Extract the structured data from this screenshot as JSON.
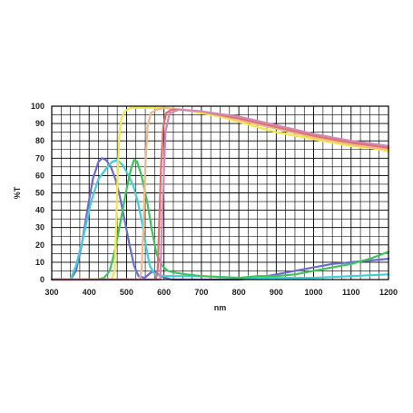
{
  "chart_data": {
    "type": "line",
    "title": "",
    "xlabel": "nm",
    "ylabel": "%T",
    "xlim": [
      300,
      1200
    ],
    "ylim": [
      0,
      100
    ],
    "x_ticks": [
      300,
      400,
      500,
      600,
      700,
      800,
      900,
      1000,
      1100,
      1200
    ],
    "y_ticks": [
      0,
      10,
      20,
      30,
      40,
      50,
      60,
      70,
      80,
      90,
      100
    ],
    "grid": true,
    "legend": "none",
    "colors": {
      "grid": "#000000",
      "blue": "#6b6bd0",
      "cyan": "#40cfd8",
      "green": "#3dc45a",
      "yellow": "#f2e84a",
      "peach": "#f0b888",
      "red": "#e07070",
      "pink": "#d08ab8"
    },
    "series": [
      {
        "color": "#6b6bd0",
        "points": [
          [
            300,
            0
          ],
          [
            350,
            0
          ],
          [
            365,
            5
          ],
          [
            380,
            20
          ],
          [
            395,
            40
          ],
          [
            410,
            58
          ],
          [
            425,
            68
          ],
          [
            435,
            70
          ],
          [
            445,
            69
          ],
          [
            458,
            65
          ],
          [
            470,
            58
          ],
          [
            482,
            48
          ],
          [
            495,
            34
          ],
          [
            508,
            20
          ],
          [
            520,
            8
          ],
          [
            532,
            2
          ],
          [
            548,
            1
          ],
          [
            565,
            4
          ],
          [
            575,
            5
          ],
          [
            590,
            2
          ],
          [
            620,
            0
          ],
          [
            700,
            0
          ],
          [
            800,
            0
          ],
          [
            850,
            1
          ],
          [
            900,
            3
          ],
          [
            950,
            5
          ],
          [
            1000,
            7
          ],
          [
            1050,
            9
          ],
          [
            1100,
            10
          ],
          [
            1150,
            11
          ],
          [
            1200,
            12
          ]
        ]
      },
      {
        "color": "#40cfd8",
        "points": [
          [
            300,
            0
          ],
          [
            350,
            0
          ],
          [
            365,
            8
          ],
          [
            385,
            25
          ],
          [
            405,
            45
          ],
          [
            425,
            58
          ],
          [
            445,
            64
          ],
          [
            462,
            68
          ],
          [
            475,
            69
          ],
          [
            490,
            66
          ],
          [
            505,
            60
          ],
          [
            518,
            54
          ],
          [
            530,
            45
          ],
          [
            542,
            32
          ],
          [
            553,
            18
          ],
          [
            562,
            8
          ],
          [
            575,
            3
          ],
          [
            600,
            2
          ],
          [
            650,
            2
          ],
          [
            700,
            2
          ],
          [
            800,
            1
          ],
          [
            900,
            1
          ],
          [
            1000,
            1
          ],
          [
            1100,
            2
          ],
          [
            1200,
            3
          ]
        ]
      },
      {
        "color": "#3dc45a",
        "points": [
          [
            300,
            0
          ],
          [
            420,
            0
          ],
          [
            440,
            1
          ],
          [
            455,
            5
          ],
          [
            470,
            18
          ],
          [
            485,
            35
          ],
          [
            500,
            52
          ],
          [
            512,
            64
          ],
          [
            520,
            69
          ],
          [
            528,
            68
          ],
          [
            540,
            60
          ],
          [
            555,
            45
          ],
          [
            568,
            28
          ],
          [
            580,
            15
          ],
          [
            595,
            8
          ],
          [
            610,
            5
          ],
          [
            630,
            4
          ],
          [
            660,
            3
          ],
          [
            700,
            2
          ],
          [
            800,
            1
          ],
          [
            850,
            2
          ],
          [
            900,
            2
          ],
          [
            950,
            3
          ],
          [
            1000,
            5
          ],
          [
            1050,
            7
          ],
          [
            1100,
            9
          ],
          [
            1150,
            12
          ],
          [
            1200,
            16
          ]
        ]
      },
      {
        "color": "#f2e84a",
        "points": [
          [
            300,
            0
          ],
          [
            460,
            0
          ],
          [
            468,
            5
          ],
          [
            472,
            30
          ],
          [
            476,
            60
          ],
          [
            480,
            82
          ],
          [
            486,
            93
          ],
          [
            495,
            97
          ],
          [
            510,
            99
          ],
          [
            550,
            99
          ],
          [
            600,
            99
          ],
          [
            650,
            98
          ],
          [
            700,
            96
          ],
          [
            750,
            94
          ],
          [
            800,
            91
          ],
          [
            850,
            88
          ],
          [
            900,
            85
          ],
          [
            950,
            83
          ],
          [
            1000,
            81
          ],
          [
            1050,
            79
          ],
          [
            1100,
            77
          ],
          [
            1150,
            76
          ],
          [
            1200,
            74
          ]
        ]
      },
      {
        "color": "#f0b888",
        "points": [
          [
            300,
            0
          ],
          [
            535,
            0
          ],
          [
            540,
            5
          ],
          [
            545,
            30
          ],
          [
            550,
            65
          ],
          [
            556,
            88
          ],
          [
            565,
            96
          ],
          [
            580,
            98
          ],
          [
            600,
            99
          ],
          [
            650,
            98
          ],
          [
            700,
            97
          ],
          [
            800,
            92
          ],
          [
            900,
            87
          ],
          [
            1000,
            82
          ],
          [
            1100,
            78
          ],
          [
            1200,
            75
          ]
        ]
      },
      {
        "color": "#e07070",
        "points": [
          [
            300,
            0
          ],
          [
            578,
            0
          ],
          [
            583,
            5
          ],
          [
            587,
            30
          ],
          [
            592,
            65
          ],
          [
            598,
            88
          ],
          [
            606,
            96
          ],
          [
            620,
            98
          ],
          [
            640,
            98
          ],
          [
            700,
            97
          ],
          [
            800,
            93
          ],
          [
            900,
            88
          ],
          [
            1000,
            83
          ],
          [
            1100,
            79
          ],
          [
            1200,
            76
          ]
        ]
      },
      {
        "color": "#d08ab8",
        "points": [
          [
            300,
            0
          ],
          [
            590,
            0
          ],
          [
            596,
            40
          ],
          [
            604,
            85
          ],
          [
            615,
            96
          ],
          [
            640,
            98
          ],
          [
            700,
            97
          ],
          [
            800,
            94
          ],
          [
            900,
            89
          ],
          [
            1000,
            84
          ],
          [
            1100,
            80
          ],
          [
            1200,
            77
          ]
        ]
      }
    ]
  }
}
